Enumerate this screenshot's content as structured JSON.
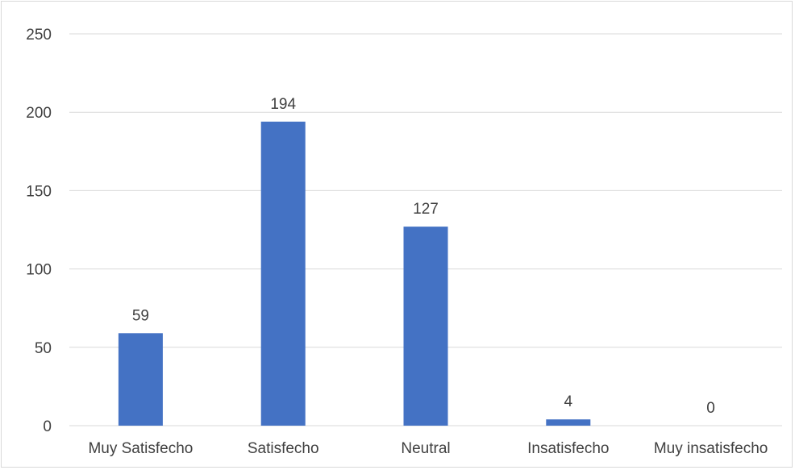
{
  "chart_data": {
    "type": "bar",
    "title": "",
    "xlabel": "",
    "ylabel": "",
    "categories": [
      "Muy Satisfecho",
      "Satisfecho",
      "Neutral",
      "Insatisfecho",
      "Muy insatisfecho"
    ],
    "values": [
      59,
      194,
      127,
      4,
      0
    ],
    "data_labels": [
      "59",
      "194",
      "127",
      "4",
      "0"
    ],
    "yticks": [
      "0",
      "50",
      "100",
      "150",
      "200",
      "250"
    ],
    "ylim": [
      0,
      250
    ],
    "grid": true,
    "legend": "none",
    "colors": {
      "bar": "#4472c4",
      "grid": "#d9d9d9",
      "text": "#404040"
    }
  }
}
